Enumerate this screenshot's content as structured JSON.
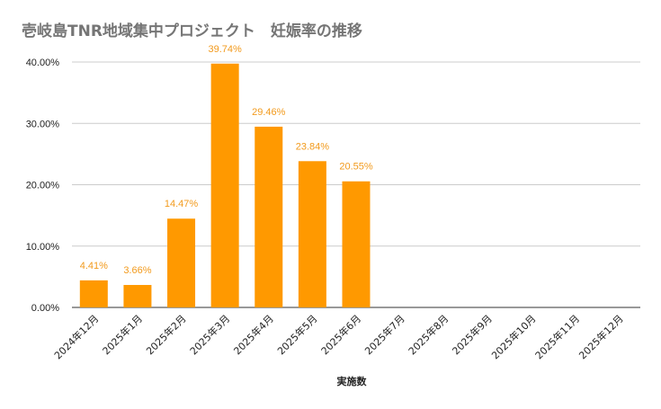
{
  "chart_data": {
    "type": "bar",
    "title": "壱岐島TNR地域集中プロジェクト　妊娠率の推移",
    "xlabel": "実施数",
    "ylabel": "",
    "ylim": [
      0,
      40
    ],
    "y_ticks": [
      "0.00%",
      "10.00%",
      "20.00%",
      "30.00%",
      "40.00%"
    ],
    "y_tick_values": [
      0,
      10,
      20,
      30,
      40
    ],
    "categories": [
      "2024年12月",
      "2025年1月",
      "2025年2月",
      "2025年3月",
      "2025年4月",
      "2025年5月",
      "2025年6月",
      "2025年7月",
      "2025年8月",
      "2025年9月",
      "2025年10月",
      "2025年11月",
      "2025年12月"
    ],
    "values": [
      4.41,
      3.66,
      14.47,
      39.74,
      29.46,
      23.84,
      20.55,
      null,
      null,
      null,
      null,
      null,
      null
    ],
    "data_labels": [
      "4.41%",
      "3.66%",
      "14.47%",
      "39.74%",
      "29.46%",
      "23.84%",
      "20.55%",
      "",
      "",
      "",
      "",
      "",
      ""
    ],
    "grid": true,
    "legend": "none",
    "colors": {
      "bar": "#ff9900",
      "label": "#f29a1c",
      "grid": "#cccccc",
      "axis": "#333333"
    }
  }
}
